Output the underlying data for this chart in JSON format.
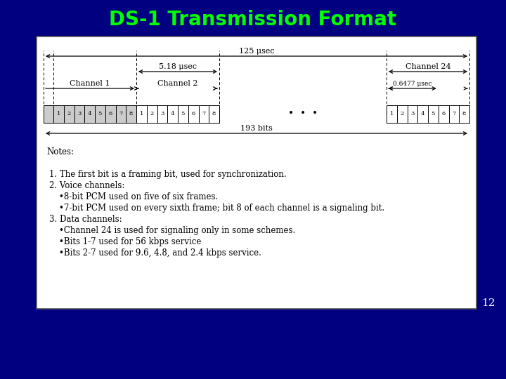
{
  "title": "DS-1 Transmission Format",
  "title_color": "#00ff00",
  "bg_color": "#000080",
  "box_bg": "#ffffff",
  "slide_num": "12",
  "notes_lines": [
    "Notes:",
    "",
    "1. The first bit is a framing bit, used for synchronization.",
    "2. Voice channels:",
    "    •8-bit PCM used on five of six frames.",
    "    •7-bit PCM used on every sixth frame; bit 8 of each channel is a signaling bit.",
    "3. Data channels:",
    "    •Channel 24 is used for signaling only in some schemes.",
    "    •Bits 1-7 used for 56 kbps service",
    "    •Bits 2-7 used for 9.6, 4.8, and 2.4 kbps service."
  ],
  "ch1_label": "Channel 1",
  "ch2_label": "Channel 2",
  "ch24_label": "Channel 24",
  "label_125": "125 μsec",
  "label_518": "5.18 μsec",
  "label_0647": "0.6477 μsec",
  "label_193": "193 bits"
}
